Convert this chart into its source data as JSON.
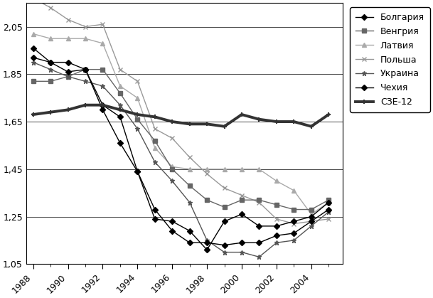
{
  "years": [
    1988,
    1989,
    1990,
    1991,
    1992,
    1993,
    1994,
    1995,
    1996,
    1997,
    1998,
    1999,
    2000,
    2001,
    2002,
    2003,
    2004,
    2005
  ],
  "series": {
    "Болгария": [
      1.92,
      1.9,
      1.86,
      1.87,
      1.7,
      1.56,
      1.44,
      1.24,
      1.23,
      1.19,
      1.11,
      1.23,
      1.26,
      1.21,
      1.21,
      1.23,
      1.25,
      1.31
    ],
    "Венгрия": [
      1.82,
      1.82,
      1.84,
      1.87,
      1.87,
      1.77,
      1.66,
      1.57,
      1.45,
      1.38,
      1.32,
      1.29,
      1.32,
      1.32,
      1.3,
      1.28,
      1.28,
      1.32
    ],
    "Латвия": [
      2.02,
      2.0,
      2.0,
      2.0,
      1.98,
      1.8,
      1.75,
      1.54,
      1.46,
      1.45,
      1.45,
      1.45,
      1.45,
      1.45,
      1.4,
      1.36,
      1.26,
      1.31
    ],
    "Польша": [
      2.17,
      2.13,
      2.08,
      2.05,
      2.06,
      1.87,
      1.82,
      1.62,
      1.58,
      1.5,
      1.43,
      1.37,
      1.34,
      1.31,
      1.24,
      1.22,
      1.23,
      1.24
    ],
    "Украина": [
      1.9,
      1.87,
      1.84,
      1.82,
      1.8,
      1.72,
      1.62,
      1.48,
      1.4,
      1.31,
      1.15,
      1.1,
      1.1,
      1.08,
      1.14,
      1.15,
      1.21,
      1.27
    ],
    "Чехия": [
      1.96,
      1.9,
      1.9,
      1.87,
      1.72,
      1.67,
      1.44,
      1.28,
      1.19,
      1.14,
      1.14,
      1.13,
      1.14,
      1.14,
      1.17,
      1.18,
      1.23,
      1.28
    ],
    "СЗЕ-12": [
      1.68,
      1.69,
      1.7,
      1.72,
      1.72,
      1.7,
      1.68,
      1.67,
      1.65,
      1.64,
      1.64,
      1.63,
      1.68,
      1.66,
      1.65,
      1.65,
      1.63,
      1.68
    ]
  },
  "colors": {
    "Болгария": "#000000",
    "Венгрия": "#666666",
    "Латвия": "#aaaaaa",
    "Польша": "#999999",
    "Украина": "#555555",
    "Чехия": "#000000",
    "СЗЕ-12": "#333333"
  },
  "markers": {
    "Болгария": "D",
    "Венгрия": "s",
    "Латвия": "^",
    "Польша": "x",
    "Украина": "*",
    "Чехия": "D",
    "СЗЕ-12": "+"
  },
  "linewidths": {
    "Болгария": 1.0,
    "Венгрия": 1.0,
    "Латвия": 1.0,
    "Польша": 1.0,
    "Украина": 1.0,
    "Чехия": 1.0,
    "СЗЕ-12": 2.8
  },
  "markersizes": {
    "Болгария": 4,
    "Венгрия": 4,
    "Латвия": 4,
    "Польша": 5,
    "Украина": 5,
    "Чехия": 4,
    "СЗЕ-12": 4
  },
  "ylim": [
    1.05,
    2.15
  ],
  "yticks": [
    1.05,
    1.25,
    1.45,
    1.65,
    1.85,
    2.05
  ],
  "ytick_labels": [
    "1,05",
    "1,25",
    "1,45",
    "1,65",
    "1,85",
    "2,05"
  ],
  "xtick_years": [
    1988,
    1990,
    1992,
    1994,
    1996,
    1998,
    2000,
    2002,
    2004
  ],
  "xlim_left": 1987.6,
  "xlim_right": 2005.8,
  "background_color": "#ffffff"
}
